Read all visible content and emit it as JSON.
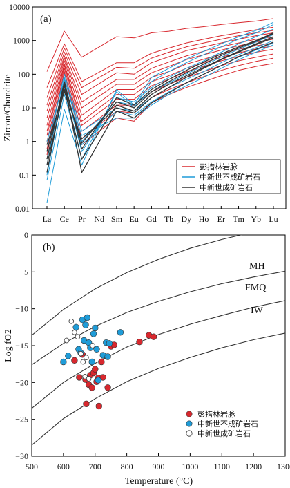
{
  "colors": {
    "pcl": "#d8282e",
    "nonmin": "#1f9cd8",
    "min": "#333333",
    "curve": "#333333",
    "axis": "#000000"
  },
  "chart_data": [
    {
      "type": "line",
      "panel_label": "(a)",
      "ylabel": "Zircon/Chondrite",
      "yscale": "log",
      "ylim": [
        0.01,
        10000
      ],
      "yticks": [
        "0.01",
        "0.1",
        "1",
        "10",
        "100",
        "1000",
        "10000"
      ],
      "categories": [
        "La",
        "Ce",
        "Pr",
        "Nd",
        "Sm",
        "Eu",
        "Gd",
        "Tb",
        "Dy",
        "Ho",
        "Er",
        "Tm",
        "Yb",
        "Lu"
      ],
      "legend": {
        "position": "bottom-right",
        "items": [
          "彭措林岩脉",
          "中新世不成矿岩石",
          "中新世成矿岩石"
        ]
      },
      "series": [
        {
          "group": "pcl",
          "values": [
            120,
            1900,
            320,
            null,
            1300,
            1200,
            1700,
            1900,
            2300,
            2600,
            3000,
            3400,
            3800,
            4500
          ]
        },
        {
          "group": "pcl",
          "values": [
            40,
            800,
            60,
            null,
            220,
            220,
            420,
            600,
            850,
            1100,
            1400,
            1700,
            2100,
            2500
          ]
        },
        {
          "group": "pcl",
          "values": [
            20,
            600,
            40,
            null,
            160,
            150,
            300,
            450,
            650,
            850,
            1100,
            1400,
            1700,
            2000
          ]
        },
        {
          "group": "pcl",
          "values": [
            12,
            450,
            25,
            null,
            110,
            100,
            220,
            330,
            500,
            650,
            850,
            1100,
            1400,
            1700
          ]
        },
        {
          "group": "pcl",
          "values": [
            8,
            350,
            15,
            null,
            70,
            70,
            150,
            230,
            350,
            480,
            650,
            850,
            1100,
            1300
          ]
        },
        {
          "group": "pcl",
          "values": [
            5,
            300,
            10,
            null,
            50,
            50,
            110,
            170,
            270,
            380,
            520,
            700,
            900,
            1100
          ]
        },
        {
          "group": "pcl",
          "values": [
            3,
            250,
            6,
            null,
            35,
            35,
            80,
            120,
            200,
            280,
            400,
            550,
            700,
            850
          ]
        },
        {
          "group": "pcl",
          "values": [
            2,
            200,
            4,
            null,
            25,
            25,
            60,
            90,
            150,
            220,
            320,
            430,
            560,
            700
          ]
        },
        {
          "group": "pcl",
          "values": [
            1.5,
            180,
            3,
            null,
            18,
            18,
            45,
            70,
            120,
            170,
            250,
            340,
            450,
            550
          ]
        },
        {
          "group": "pcl",
          "values": [
            1,
            150,
            2,
            null,
            12,
            12,
            30,
            50,
            80,
            120,
            180,
            250,
            320,
            400
          ]
        },
        {
          "group": "pcl",
          "values": [
            0.6,
            120,
            1.2,
            null,
            8,
            7,
            20,
            35,
            55,
            85,
            130,
            180,
            240,
            300
          ]
        },
        {
          "group": "pcl",
          "values": [
            0.4,
            110,
            0.8,
            null,
            5,
            4,
            14,
            25,
            40,
            60,
            90,
            130,
            170,
            210
          ]
        },
        {
          "group": "nonmin",
          "values": [
            0.015,
            9,
            0.2,
            null,
            35,
            12,
            80,
            150,
            280,
            480,
            800,
            1300,
            2000,
            3500
          ]
        },
        {
          "group": "nonmin",
          "values": [
            0.07,
            25,
            0.3,
            null,
            30,
            10,
            60,
            120,
            220,
            380,
            650,
            1100,
            1700,
            3000
          ]
        },
        {
          "group": "nonmin",
          "values": [
            0.1,
            50,
            0.5,
            null,
            20,
            15,
            40,
            80,
            150,
            250,
            450,
            800,
            1300,
            2200
          ]
        },
        {
          "group": "nonmin",
          "values": [
            0.2,
            80,
            1,
            null,
            15,
            12,
            30,
            55,
            100,
            180,
            320,
            550,
            900,
            1500
          ]
        },
        {
          "group": "nonmin",
          "values": [
            0.5,
            100,
            2,
            null,
            10,
            8,
            20,
            40,
            70,
            120,
            220,
            380,
            620,
            1000
          ]
        },
        {
          "group": "nonmin",
          "values": [
            1,
            70,
            1.5,
            null,
            5,
            5,
            12,
            25,
            45,
            80,
            150,
            270,
            450,
            750
          ]
        },
        {
          "group": "nonmin",
          "values": [
            0.3,
            40,
            0.8,
            null,
            8,
            6,
            15,
            30,
            55,
            100,
            180,
            320,
            520,
            850
          ]
        },
        {
          "group": "min",
          "values": [
            0.12,
            50,
            0.12,
            null,
            8,
            5,
            14,
            28,
            55,
            100,
            180,
            330,
            550,
            900
          ]
        },
        {
          "group": "min",
          "values": [
            0.2,
            35,
            0.3,
            null,
            12,
            8,
            25,
            50,
            90,
            160,
            280,
            480,
            800,
            1300
          ]
        },
        {
          "group": "min",
          "values": [
            0.3,
            60,
            0.6,
            null,
            20,
            12,
            35,
            70,
            130,
            230,
            400,
            650,
            1000,
            1700
          ]
        },
        {
          "group": "min",
          "values": [
            0.5,
            45,
            0.9,
            null,
            15,
            10,
            30,
            60,
            110,
            200,
            360,
            600,
            950,
            1600
          ]
        },
        {
          "group": "min",
          "values": [
            0.8,
            30,
            1.2,
            null,
            10,
            7,
            20,
            40,
            80,
            150,
            270,
            450,
            750,
            1200
          ]
        }
      ]
    },
    {
      "type": "scatter",
      "panel_label": "(b)",
      "xlabel": "Temperature (°C)",
      "ylabel": "Log fO2",
      "xlim": [
        500,
        1300
      ],
      "ylim": [
        -30,
        0
      ],
      "xticks": [
        500,
        600,
        700,
        800,
        900,
        1000,
        1100,
        1200,
        1300
      ],
      "yticks": [
        0,
        -5,
        -10,
        -15,
        -20,
        -25,
        -30
      ],
      "buffers": [
        {
          "name": "MH",
          "values": [
            [
              500,
              -13.6
            ],
            [
              600,
              -10.1
            ],
            [
              700,
              -7.3
            ],
            [
              800,
              -5.1
            ],
            [
              900,
              -3.3
            ],
            [
              1000,
              -1.8
            ],
            [
              1100,
              -0.6
            ],
            [
              1200,
              0.4
            ],
            [
              1300,
              1.3
            ]
          ]
        },
        {
          "name": "FMQ",
          "values": [
            [
              500,
              -17.6
            ],
            [
              600,
              -14.7
            ],
            [
              700,
              -12.4
            ],
            [
              800,
              -10.5
            ],
            [
              900,
              -9.0
            ],
            [
              1000,
              -7.7
            ],
            [
              1100,
              -6.6
            ],
            [
              1200,
              -5.7
            ],
            [
              1300,
              -4.9
            ]
          ]
        },
        {
          "name": "IW",
          "values": [
            [
              500,
              -23.5
            ],
            [
              600,
              -20.0
            ],
            [
              700,
              -17.4
            ],
            [
              800,
              -15.2
            ],
            [
              900,
              -13.5
            ],
            [
              1000,
              -12.1
            ],
            [
              1100,
              -10.9
            ],
            [
              1200,
              -9.8
            ],
            [
              1300,
              -8.9
            ]
          ]
        },
        {
          "name": "",
          "values": [
            [
              500,
              -28.5
            ],
            [
              600,
              -24.9
            ],
            [
              700,
              -22.2
            ],
            [
              800,
              -19.9
            ],
            [
              900,
              -18.1
            ],
            [
              1000,
              -16.6
            ],
            [
              1100,
              -15.3
            ],
            [
              1200,
              -14.2
            ],
            [
              1300,
              -13.3
            ]
          ]
        }
      ],
      "legend": {
        "position": "bottom-right",
        "items": [
          "彭措林岩脉",
          "中新世不成矿岩石",
          "中新世成矿岩石"
        ]
      },
      "series": [
        {
          "name": "彭措林岩脉",
          "group": "pcl",
          "points": [
            [
              635,
              -17.0
            ],
            [
              650,
              -19.3
            ],
            [
              660,
              -16.2
            ],
            [
              670,
              -19.6
            ],
            [
              672,
              -22.9
            ],
            [
              680,
              -20.3
            ],
            [
              685,
              -19.0
            ],
            [
              690,
              -20.7
            ],
            [
              695,
              -18.7
            ],
            [
              700,
              -18.2
            ],
            [
              705,
              -19.9
            ],
            [
              710,
              -19.4
            ],
            [
              712,
              -23.2
            ],
            [
              720,
              -17.2
            ],
            [
              725,
              -19.3
            ],
            [
              740,
              -20.7
            ],
            [
              750,
              -15.1
            ],
            [
              760,
              -14.9
            ],
            [
              840,
              -14.5
            ],
            [
              870,
              -13.6
            ],
            [
              885,
              -13.8
            ]
          ]
        },
        {
          "name": "中新世不成矿岩石",
          "group": "nonmin",
          "points": [
            [
              600,
              -17.2
            ],
            [
              615,
              -16.4
            ],
            [
              640,
              -12.5
            ],
            [
              648,
              -15.5
            ],
            [
              655,
              -16.0
            ],
            [
              660,
              -11.5
            ],
            [
              665,
              -14.3
            ],
            [
              670,
              -12.2
            ],
            [
              675,
              -11.2
            ],
            [
              680,
              -14.6
            ],
            [
              685,
              -15.3
            ],
            [
              690,
              -17.2
            ],
            [
              695,
              -13.4
            ],
            [
              700,
              -12.6
            ],
            [
              705,
              -15.5
            ],
            [
              710,
              -19.7
            ],
            [
              725,
              -16.3
            ],
            [
              735,
              -14.6
            ],
            [
              740,
              -16.5
            ],
            [
              745,
              -14.7
            ],
            [
              780,
              -13.2
            ]
          ]
        },
        {
          "name": "中新世成矿岩石",
          "group": "min",
          "points": [
            [
              610,
              -14.3
            ],
            [
              625,
              -11.7
            ],
            [
              635,
              -13.2
            ],
            [
              645,
              -13.8
            ],
            [
              655,
              -16.1
            ],
            [
              662,
              -17.2
            ],
            [
              668,
              -19.2
            ],
            [
              672,
              -16.6
            ],
            [
              680,
              -19.5
            ],
            [
              692,
              -15.0
            ]
          ]
        }
      ]
    }
  ]
}
